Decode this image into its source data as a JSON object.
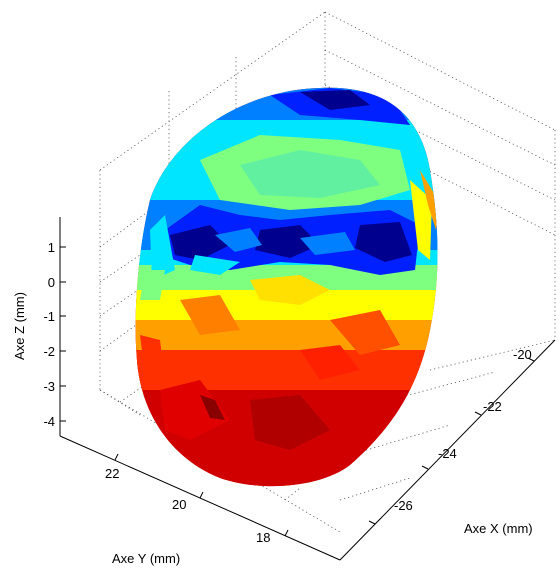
{
  "chart_data": {
    "type": "surface3d",
    "title": "",
    "xlabel": "Axe X (mm)",
    "ylabel": "Axe Y (mm)",
    "zlabel": "Axe Z (mm)",
    "x_ticks": [
      "-20",
      "-22",
      "-24",
      "-26"
    ],
    "y_ticks": [
      "22",
      "20",
      "18"
    ],
    "z_ticks": [
      "1",
      "0",
      "-1",
      "-2",
      "-3",
      "-4"
    ],
    "zlim": [
      -4,
      1
    ],
    "grid": true,
    "colormap": [
      "#00008f",
      "#0020ff",
      "#0080ff",
      "#00e5ff",
      "#7fff7f",
      "#ffff00",
      "#ffa000",
      "#ff3000",
      "#c00000"
    ]
  }
}
